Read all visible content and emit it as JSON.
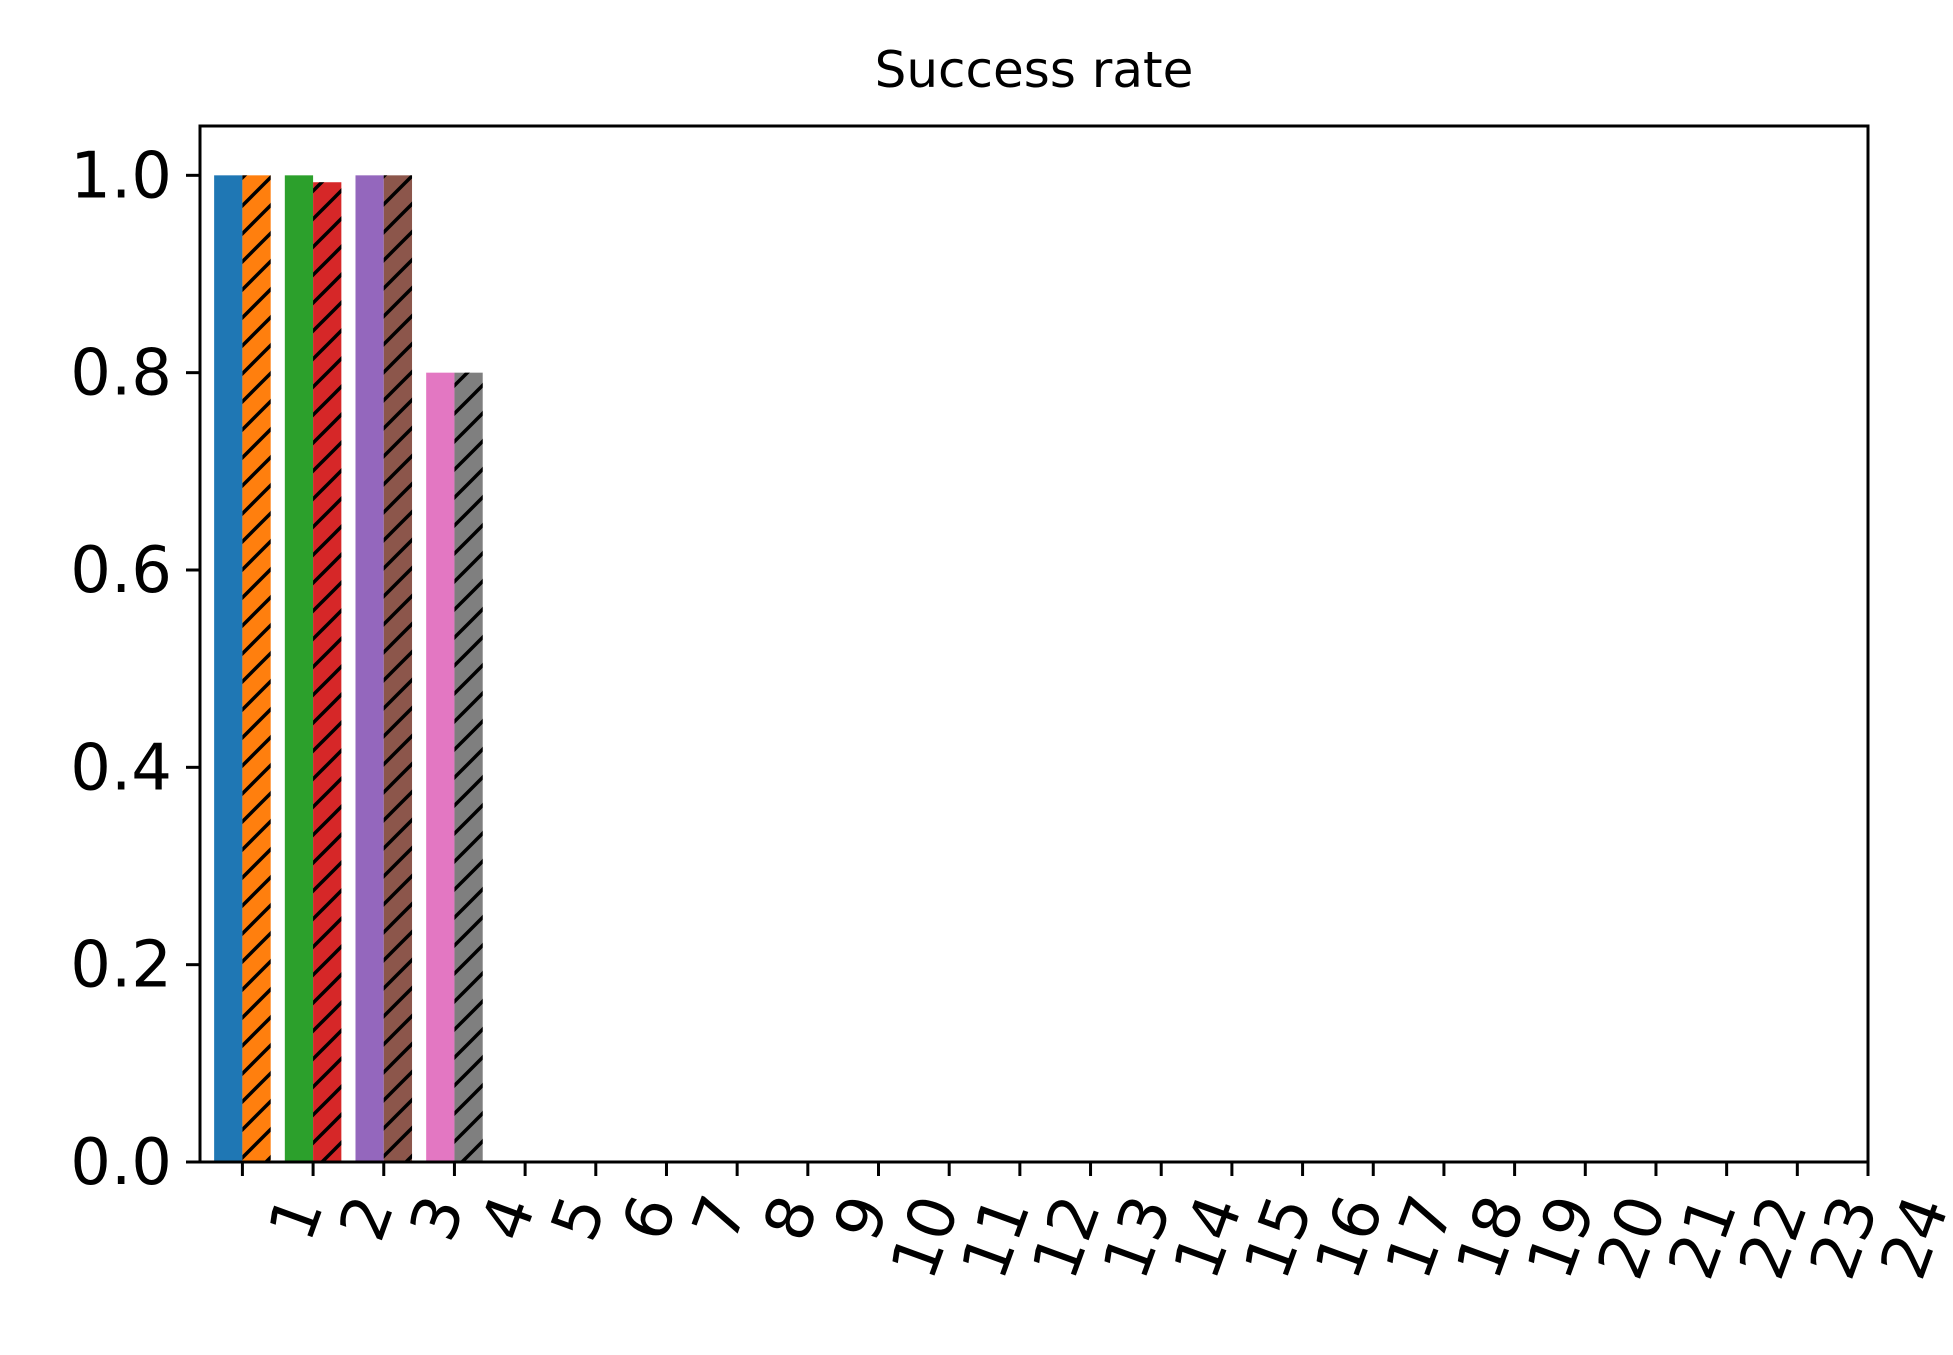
{
  "chart_data": {
    "type": "bar",
    "title": "Success rate",
    "xlabel": "",
    "ylabel": "",
    "ylim": [
      0,
      1.05
    ],
    "xlim": [
      0.4,
      24.0
    ],
    "grid": false,
    "legend": "none",
    "yticks": [
      0.0,
      0.2,
      0.4,
      0.6,
      0.8,
      1.0
    ],
    "ytick_labels": [
      "0.0",
      "0.2",
      "0.4",
      "0.6",
      "0.8",
      "1.0"
    ],
    "categories": [
      "1",
      "2",
      "3",
      "4",
      "5",
      "6",
      "7",
      "8",
      "9",
      "10",
      "11",
      "12",
      "13",
      "14",
      "15",
      "16",
      "17",
      "18",
      "19",
      "20",
      "21",
      "22",
      "23",
      "24"
    ],
    "bars": [
      {
        "category": "1",
        "offset": "left",
        "value": 1.0,
        "color": "#1f77b4",
        "hatch": false
      },
      {
        "category": "1",
        "offset": "right",
        "value": 1.0,
        "color": "#ff7f0e",
        "hatch": true
      },
      {
        "category": "2",
        "offset": "left",
        "value": 1.0,
        "color": "#2ca02c",
        "hatch": false
      },
      {
        "category": "2",
        "offset": "right",
        "value": 0.993,
        "color": "#d62728",
        "hatch": true
      },
      {
        "category": "3",
        "offset": "left",
        "value": 1.0,
        "color": "#9467bd",
        "hatch": false
      },
      {
        "category": "3",
        "offset": "right",
        "value": 1.0,
        "color": "#8c564b",
        "hatch": true
      },
      {
        "category": "4",
        "offset": "left",
        "value": 0.8,
        "color": "#e377c2",
        "hatch": false
      },
      {
        "category": "4",
        "offset": "right",
        "value": 0.8,
        "color": "#7f7f7f",
        "hatch": true
      }
    ]
  }
}
